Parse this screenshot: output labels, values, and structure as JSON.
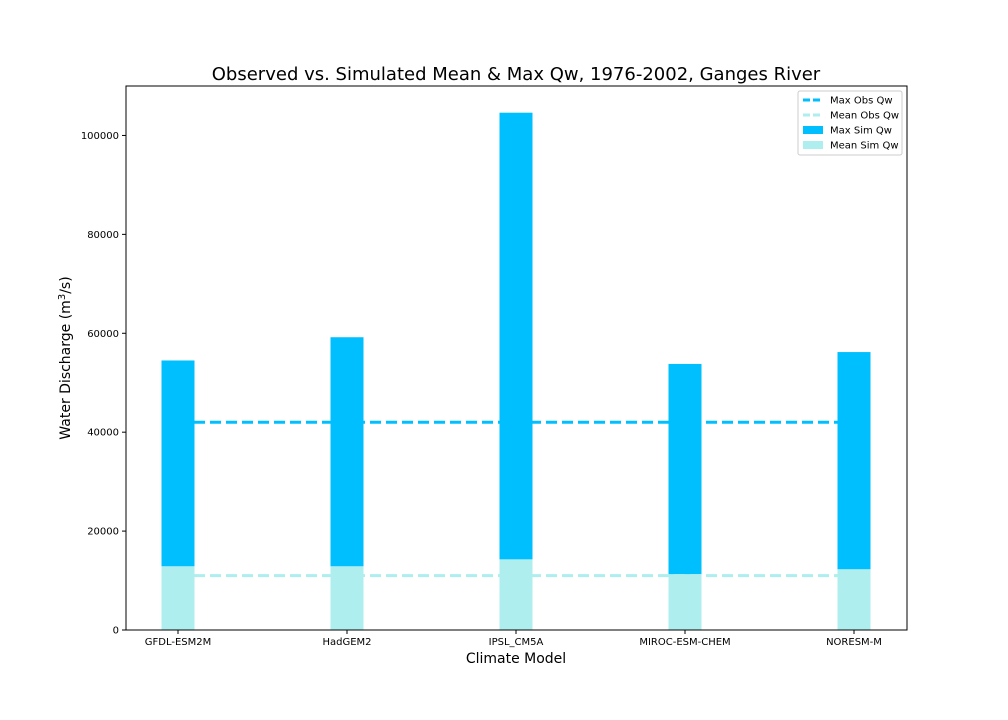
{
  "chart_data": {
    "type": "bar",
    "title": "Observed vs. Simulated Mean & Max Qw, 1976-2002, Ganges River",
    "xlabel": "Climate Model",
    "ylabel_prefix": "Water Discharge (m",
    "ylabel_sup": "3",
    "ylabel_suffix": "/s)",
    "categories": [
      "GFDL-ESM2M",
      "HadGEM2",
      "IPSL_CM5A",
      "MIROC-ESM-CHEM",
      "NORESM-M"
    ],
    "series": [
      {
        "name": "Max Sim Qw",
        "values": [
          54500,
          59200,
          104600,
          53800,
          56200
        ],
        "color": "#00bfff"
      },
      {
        "name": "Mean Sim Qw",
        "values": [
          12900,
          12900,
          14300,
          11300,
          12300
        ],
        "color": "#afeeee"
      }
    ],
    "reference_lines": [
      {
        "name": "Max Obs Qw",
        "value": 42000,
        "color": "#00bfff",
        "style": "dashed"
      },
      {
        "name": "Mean Obs Qw",
        "value": 11000,
        "color": "#afeeee",
        "style": "dashed"
      }
    ],
    "yticks": [
      0,
      20000,
      40000,
      60000,
      80000,
      100000
    ],
    "ylim": [
      0,
      110000
    ],
    "legend_position": "top-right",
    "legend": [
      "Max Obs Qw",
      "Mean Obs Qw",
      "Max Sim Qw",
      "Mean Sim Qw"
    ],
    "grid": false
  }
}
